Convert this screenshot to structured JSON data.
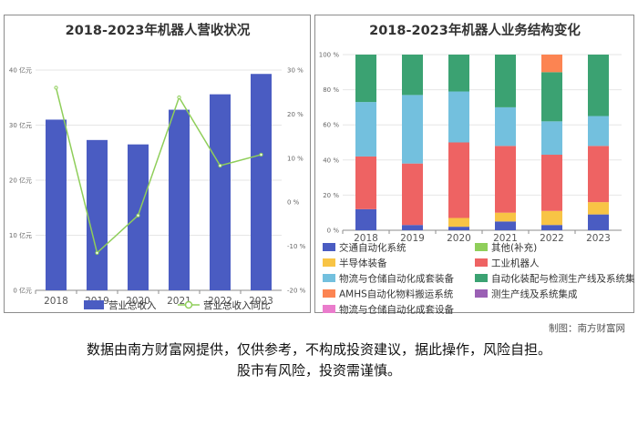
{
  "chart_data": [
    {
      "type": "bar+line",
      "title": "2018-2023年机器人营收状况",
      "categories": [
        "2018",
        "2019",
        "2020",
        "2021",
        "2022",
        "2023"
      ],
      "series": [
        {
          "name": "营业总收入",
          "type": "bar",
          "axis": "left",
          "values": [
            31.0,
            27.3,
            26.5,
            32.8,
            35.6,
            39.3
          ]
        },
        {
          "name": "营业总收入同比",
          "type": "line",
          "axis": "right",
          "values": [
            26.0,
            -11.5,
            -3.0,
            23.8,
            8.3,
            10.8
          ]
        }
      ],
      "y_left": {
        "ticks": [
          "0 亿元",
          "10 亿元",
          "20 亿元",
          "30 亿元",
          "40 亿元"
        ],
        "ylim": [
          0,
          40
        ]
      },
      "y_right": {
        "ticks": [
          "-20 %",
          "-10 %",
          "0 %",
          "10 %",
          "20 %",
          "30 %"
        ],
        "ylim": [
          -20,
          30
        ]
      },
      "colors": {
        "bar": "#4a5cc2",
        "line": "#8fce5a"
      },
      "legend_position": "bottom"
    },
    {
      "type": "stacked-bar-percent",
      "title": "2018-2023年机器人业务结构变化",
      "categories": [
        "2018",
        "2019",
        "2020",
        "2021",
        "2022",
        "2023"
      ],
      "series": [
        {
          "name": "交通自动化系统",
          "color": "#4a5cc2",
          "values": [
            12,
            3,
            2,
            5,
            3,
            9
          ]
        },
        {
          "name": "其他(补充)",
          "color": "#8fce5a",
          "values": [
            0,
            0,
            0,
            0,
            0,
            0
          ]
        },
        {
          "name": "半导体装备",
          "color": "#f8c445",
          "values": [
            0,
            0,
            5,
            5,
            8,
            7
          ]
        },
        {
          "name": "工业机器人",
          "color": "#ee6363",
          "values": [
            30,
            35,
            43,
            38,
            32,
            32
          ]
        },
        {
          "name": "物流与仓储自动化成套装备",
          "color": "#73c0de",
          "values": [
            31,
            39,
            29,
            22,
            19,
            17
          ]
        },
        {
          "name": "自动化装配与检测生产线及系统集成",
          "color": "#3ba272",
          "values": [
            27,
            23,
            21,
            30,
            28,
            35
          ]
        },
        {
          "name": "AMHS自动化物料搬运系统",
          "color": "#fc8452",
          "values": [
            0,
            0,
            0,
            0,
            10,
            0
          ]
        },
        {
          "name": "测生产线及系统集成",
          "color": "#9a60b4",
          "values": [
            0,
            0,
            0,
            0,
            0,
            0
          ]
        },
        {
          "name": "物流与仓储自动化成套设备",
          "color": "#ea7ccc",
          "values": [
            0,
            0,
            0,
            0,
            0,
            0
          ]
        }
      ],
      "y_ticks": [
        "0 %",
        "20 %",
        "40 %",
        "60 %",
        "80 %",
        "100 %"
      ],
      "ylim": [
        0,
        100
      ],
      "legend_position": "bottom"
    }
  ],
  "credit": "制图：南方财富网",
  "disclaimer": {
    "line1": "数据由南方财富网提供，仅供参考，不构成投资建议，据此操作，风险自担。",
    "line2": "股市有风险，投资需谨慎。"
  }
}
